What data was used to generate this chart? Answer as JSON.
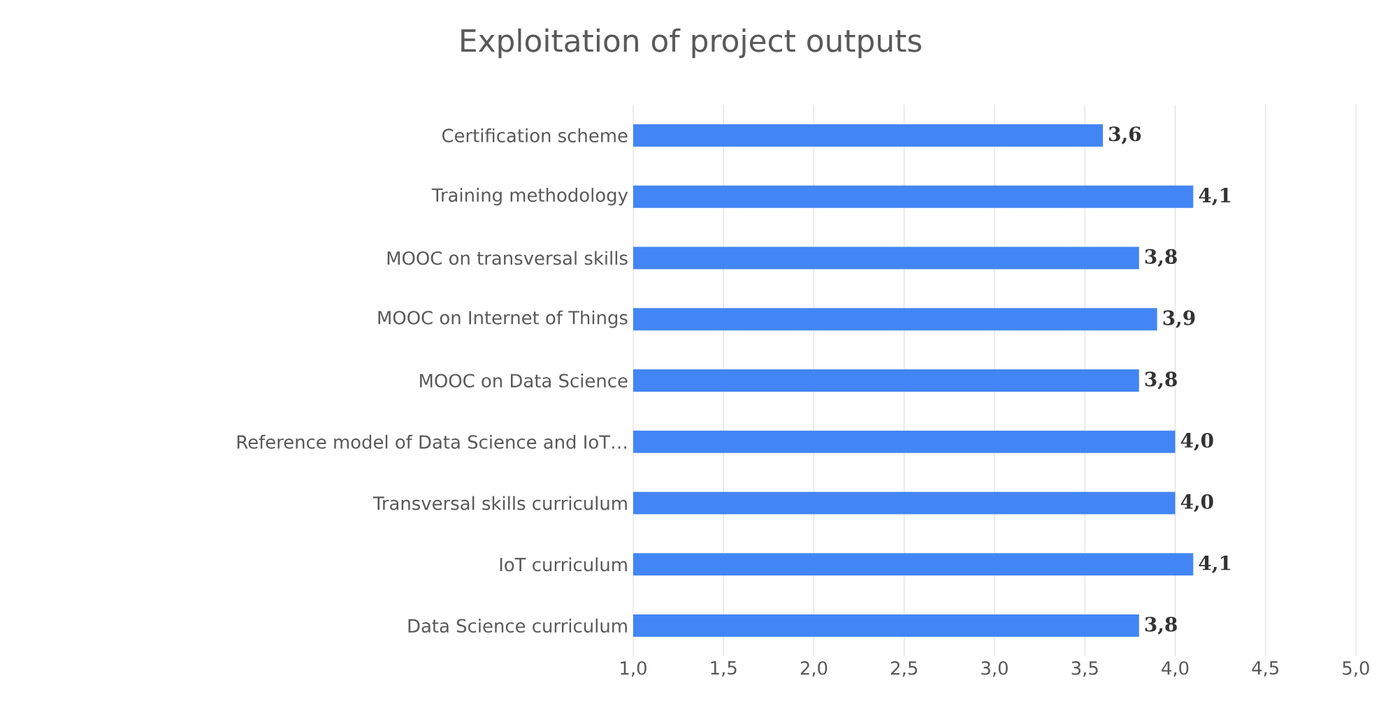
{
  "chart_data": {
    "type": "bar",
    "orientation": "horizontal",
    "title": "Exploitation of project outputs",
    "categories": [
      "Certification scheme",
      "Training methodology",
      "MOOC on transversal skills",
      "MOOC on Internet of Things",
      "MOOC on Data Science",
      "Reference model of Data Science and IoT…",
      "Transversal skills curriculum",
      "IoT curriculum",
      "Data Science curriculum"
    ],
    "values": [
      3.6,
      4.1,
      3.8,
      3.9,
      3.8,
      4.0,
      4.0,
      4.1,
      3.8
    ],
    "value_labels": [
      "3,6",
      "4,1",
      "3,8",
      "3,9",
      "3,8",
      "4,0",
      "4,0",
      "4,1",
      "3,8"
    ],
    "color": "#4285f4",
    "xlim": [
      1.0,
      5.0
    ],
    "xticks": [
      {
        "value": 1.0,
        "label": "1,0"
      },
      {
        "value": 1.5,
        "label": "1,5"
      },
      {
        "value": 2.0,
        "label": "2,0"
      },
      {
        "value": 2.5,
        "label": "2,5"
      },
      {
        "value": 3.0,
        "label": "3,0"
      },
      {
        "value": 3.5,
        "label": "3,5"
      },
      {
        "value": 4.0,
        "label": "4,0"
      },
      {
        "value": 4.5,
        "label": "4,5"
      },
      {
        "value": 5.0,
        "label": "5,0"
      }
    ],
    "grid": "x"
  }
}
